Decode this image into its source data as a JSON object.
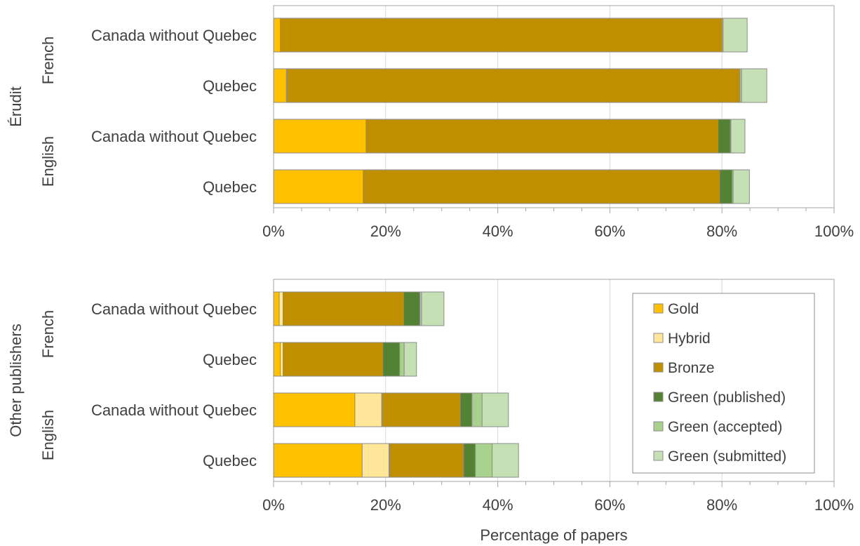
{
  "chart_data": [
    {
      "type": "bar",
      "orientation": "horizontal",
      "stacked": true,
      "group_label": "Érudit",
      "categories": [
        {
          "language": "French",
          "region": "Canada without Quebec"
        },
        {
          "language": "French",
          "region": "Quebec"
        },
        {
          "language": "English",
          "region": "Canada without Quebec"
        },
        {
          "language": "English",
          "region": "Quebec"
        }
      ],
      "series": [
        {
          "name": "Gold",
          "values": [
            1.2,
            2.3,
            16.5,
            16.0
          ]
        },
        {
          "name": "Hybrid",
          "values": [
            0,
            0,
            0,
            0
          ]
        },
        {
          "name": "Bronze",
          "values": [
            78.8,
            80.9,
            62.8,
            63.6
          ]
        },
        {
          "name": "Green (published)",
          "values": [
            0,
            0,
            2.2,
            2.2
          ]
        },
        {
          "name": "Green (accepted)",
          "values": [
            0.2,
            0.3,
            0.1,
            0.2
          ]
        },
        {
          "name": "Green (submitted)",
          "values": [
            4.3,
            4.5,
            2.5,
            2.9
          ]
        }
      ],
      "xlim": [
        0,
        100
      ],
      "xticks": [
        "0%",
        "20%",
        "40%",
        "60%",
        "80%",
        "100%"
      ],
      "grid": true
    },
    {
      "type": "bar",
      "orientation": "horizontal",
      "stacked": true,
      "group_label": "Other publishers",
      "categories": [
        {
          "language": "French",
          "region": "Canada without Quebec"
        },
        {
          "language": "French",
          "region": "Quebec"
        },
        {
          "language": "English",
          "region": "Canada without Quebec"
        },
        {
          "language": "English",
          "region": "Quebec"
        }
      ],
      "series": [
        {
          "name": "Gold",
          "values": [
            1.0,
            1.2,
            14.5,
            15.8
          ]
        },
        {
          "name": "Hybrid",
          "values": [
            0.7,
            0.5,
            4.8,
            4.8
          ]
        },
        {
          "name": "Bronze",
          "values": [
            21.5,
            17.8,
            14.0,
            13.3
          ]
        },
        {
          "name": "Green (published)",
          "values": [
            2.9,
            3.0,
            2.1,
            2.1
          ]
        },
        {
          "name": "Green (accepted)",
          "values": [
            0.3,
            0.8,
            1.8,
            3.0
          ]
        },
        {
          "name": "Green (submitted)",
          "values": [
            4.0,
            2.2,
            4.7,
            4.7
          ]
        }
      ],
      "xlim": [
        0,
        100
      ],
      "xticks": [
        "0%",
        "20%",
        "40%",
        "60%",
        "80%",
        "100%"
      ],
      "xlabel": "Percentage of papers",
      "grid": true,
      "legend": "right"
    }
  ],
  "colors": {
    "Gold": "#FFC000",
    "Hybrid": "#FFE699",
    "Bronze": "#BF8F00",
    "Green (published)": "#548235",
    "Green (accepted)": "#A9D18E",
    "Green (submitted)": "#C5E0B4",
    "grid": "#d9d9d9",
    "axis": "#a6a6a6",
    "bar_outline": "#8c8c8c"
  },
  "legend_items": [
    "Gold",
    "Hybrid",
    "Bronze",
    "Green (published)",
    "Green (accepted)",
    "Green (submitted)"
  ]
}
